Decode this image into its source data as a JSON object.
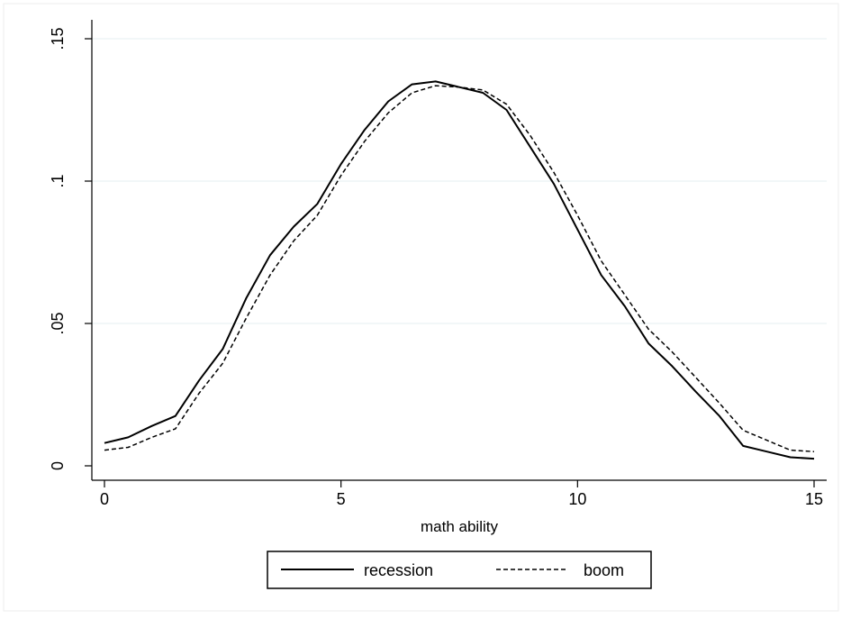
{
  "chart_data": {
    "type": "line",
    "xlabel": "math ability",
    "ylabel": "",
    "xlim": [
      0,
      15
    ],
    "ylim": [
      0,
      0.15
    ],
    "x_ticks": [
      0,
      5,
      10,
      15
    ],
    "x_tick_labels": [
      "0",
      "5",
      "10",
      "15"
    ],
    "y_ticks": [
      0,
      0.05,
      0.1,
      0.15
    ],
    "y_tick_labels": [
      "0",
      ".05",
      ".1",
      ".15"
    ],
    "grid": true,
    "legend_position": "bottom",
    "series": [
      {
        "name": "recession",
        "style": "solid",
        "color": "#000000",
        "x": [
          0,
          0.5,
          1,
          1.5,
          2,
          2.5,
          3,
          3.5,
          4,
          4.5,
          5,
          5.5,
          6,
          6.5,
          7,
          7.5,
          8,
          8.5,
          9,
          9.5,
          10,
          10.5,
          11,
          11.5,
          12,
          12.5,
          13,
          13.5,
          14,
          14.5,
          15
        ],
        "values": [
          0.008,
          0.01,
          0.014,
          0.0175,
          0.03,
          0.041,
          0.059,
          0.074,
          0.084,
          0.092,
          0.106,
          0.118,
          0.128,
          0.134,
          0.135,
          0.133,
          0.131,
          0.125,
          0.112,
          0.099,
          0.083,
          0.067,
          0.056,
          0.043,
          0.035,
          0.026,
          0.0175,
          0.007,
          0.005,
          0.003,
          0.0025
        ]
      },
      {
        "name": "boom",
        "style": "dashed",
        "color": "#000000",
        "x": [
          0,
          0.5,
          1,
          1.5,
          2,
          2.5,
          3,
          3.5,
          4,
          4.5,
          5,
          5.5,
          6,
          6.5,
          7,
          7.5,
          8,
          8.5,
          9,
          9.5,
          10,
          10.5,
          11,
          11.5,
          12,
          12.5,
          13,
          13.5,
          14,
          14.5,
          15
        ],
        "values": [
          0.0055,
          0.0065,
          0.01,
          0.013,
          0.0255,
          0.036,
          0.052,
          0.067,
          0.079,
          0.088,
          0.102,
          0.114,
          0.124,
          0.131,
          0.1335,
          0.133,
          0.132,
          0.127,
          0.116,
          0.103,
          0.088,
          0.072,
          0.06,
          0.048,
          0.04,
          0.031,
          0.022,
          0.0125,
          0.009,
          0.0055,
          0.005
        ]
      }
    ]
  }
}
